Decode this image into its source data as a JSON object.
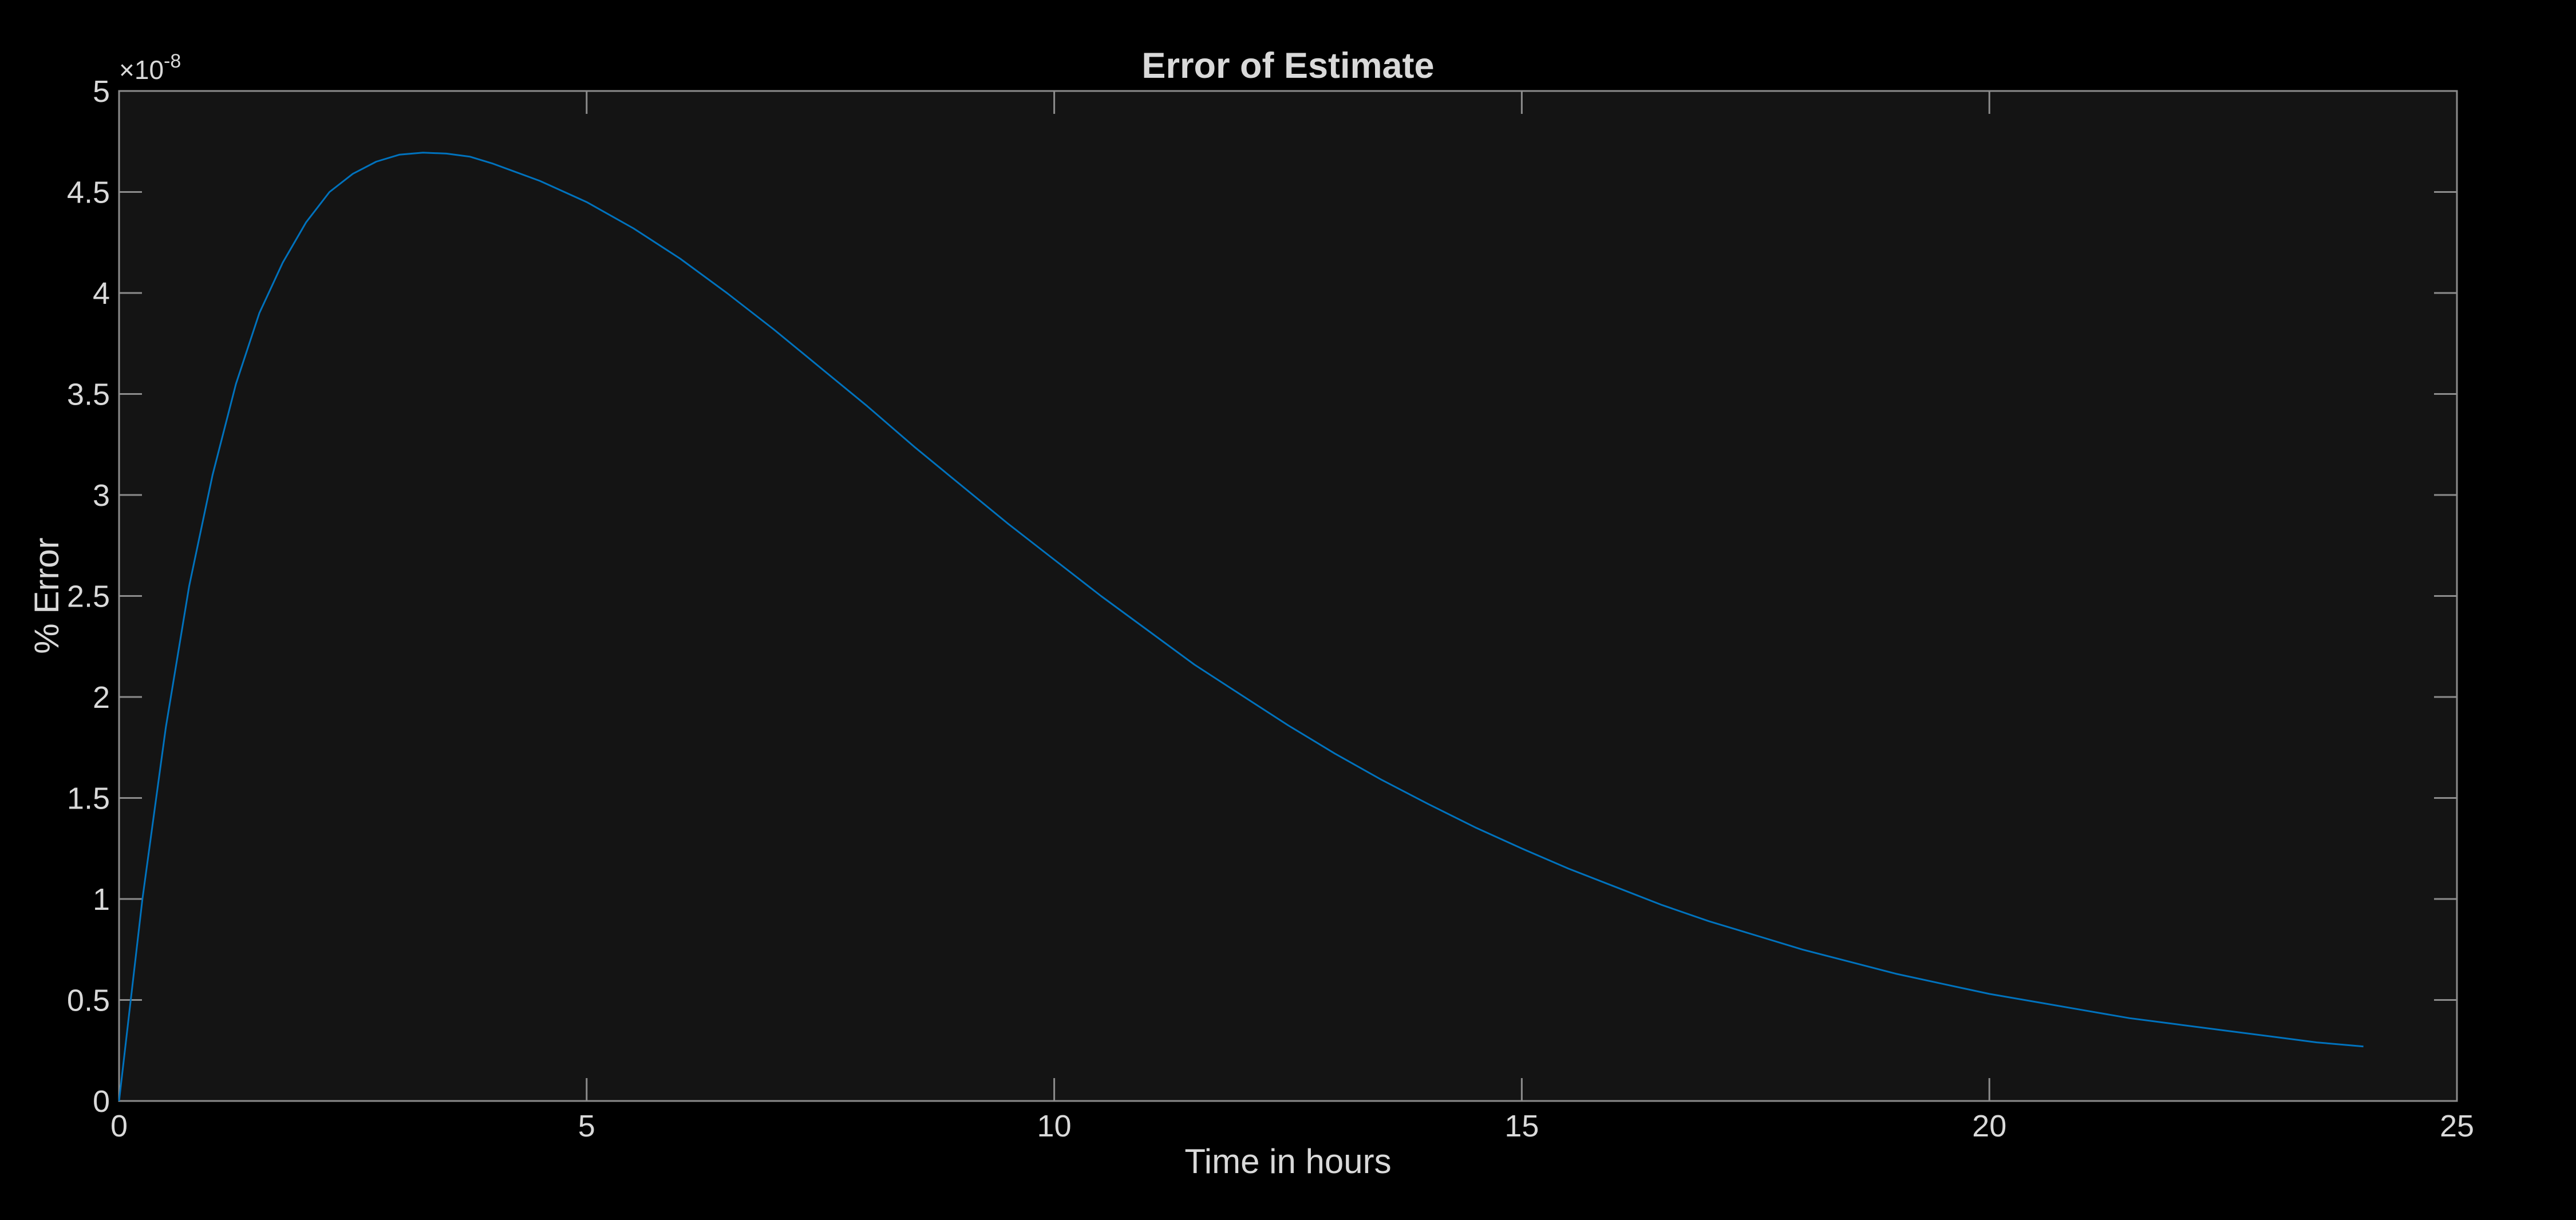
{
  "chart_data": {
    "type": "line",
    "title": "Error of Estimate",
    "xlabel": "Time in hours",
    "ylabel": "% Error",
    "y_exponent_prefix": "×10",
    "y_exponent_power": "-8",
    "xlim": [
      0,
      25
    ],
    "ylim": [
      0,
      5
    ],
    "x_ticks": [
      0,
      5,
      10,
      15,
      20,
      25
    ],
    "x_tick_labels": [
      "0",
      "5",
      "10",
      "15",
      "20",
      "25"
    ],
    "y_ticks": [
      0,
      0.5,
      1,
      1.5,
      2,
      2.5,
      3,
      3.5,
      4,
      4.5,
      5
    ],
    "y_tick_labels": [
      "0",
      "0.5",
      "1",
      "1.5",
      "2",
      "2.5",
      "3",
      "3.5",
      "4",
      "4.5",
      "5"
    ],
    "grid": false,
    "series": [
      {
        "color": "#0072bd",
        "x": [
          0,
          0.25,
          0.5,
          0.75,
          1,
          1.25,
          1.5,
          1.75,
          2,
          2.25,
          2.5,
          2.75,
          3,
          3.25,
          3.5,
          3.75,
          4,
          4.5,
          5,
          5.5,
          6,
          6.5,
          7,
          7.5,
          8,
          8.5,
          9,
          9.5,
          10,
          10.5,
          11,
          11.5,
          12,
          12.5,
          13,
          13.5,
          14,
          14.5,
          15,
          15.5,
          16,
          16.5,
          17,
          17.5,
          18,
          18.5,
          19,
          19.5,
          20,
          20.5,
          21,
          21.5,
          22,
          22.5,
          23,
          23.5,
          24
        ],
        "y": [
          0,
          1.0,
          1.85,
          2.55,
          3.1,
          3.55,
          3.9,
          4.15,
          4.35,
          4.5,
          4.59,
          4.65,
          4.685,
          4.695,
          4.69,
          4.675,
          4.64,
          4.555,
          4.45,
          4.32,
          4.17,
          4.0,
          3.82,
          3.63,
          3.44,
          3.24,
          3.05,
          2.86,
          2.68,
          2.5,
          2.33,
          2.16,
          2.01,
          1.86,
          1.72,
          1.59,
          1.47,
          1.355,
          1.25,
          1.15,
          1.06,
          0.97,
          0.89,
          0.82,
          0.75,
          0.69,
          0.63,
          0.58,
          0.53,
          0.49,
          0.45,
          0.41,
          0.38,
          0.35,
          0.32,
          0.29,
          0.27
        ]
      }
    ]
  }
}
